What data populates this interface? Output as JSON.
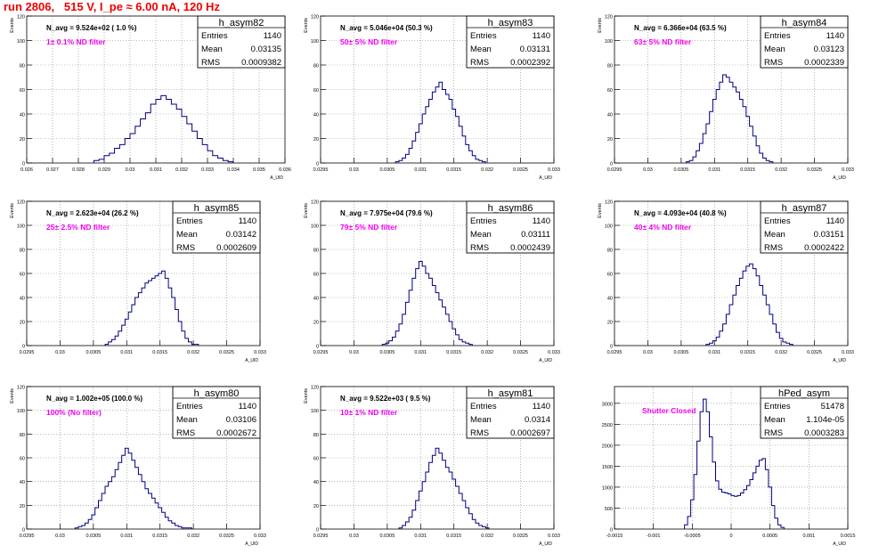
{
  "title": "run 2806,   515 V, I_pe ≈ 6.00 nA, 120 Hz",
  "colors": {
    "title": "#ee0000",
    "annotation": "#ee00ee",
    "histogram": "#000080",
    "grid": "#888888"
  },
  "chart_data": [
    {
      "type": "bar",
      "name": "h_asym82",
      "xlabel": "A_UID",
      "ylabel": "Events",
      "xlim": [
        0.026,
        0.036
      ],
      "ylim": [
        0,
        120
      ],
      "xticks": [
        "0.026",
        "0.027",
        "0.028",
        "0.029",
        "0.03",
        "0.031",
        "0.032",
        "0.033",
        "0.034",
        "0.035",
        "0.036"
      ],
      "yticks": [
        "0",
        "20",
        "40",
        "60",
        "80",
        "100",
        "120"
      ],
      "grid": true,
      "stats": [
        [
          "Entries",
          "1140"
        ],
        [
          "Mean",
          "0.03135"
        ],
        [
          "RMS",
          "0.0009382"
        ]
      ],
      "navg": "N_avg = 9.524e+02 ( 1.0 %)",
      "annotation": "1± 0.1% ND filter",
      "x": [
        0.0287,
        0.0289,
        0.0291,
        0.0293,
        0.0295,
        0.0297,
        0.0299,
        0.0301,
        0.0303,
        0.0305,
        0.0307,
        0.0309,
        0.0311,
        0.0313,
        0.0315,
        0.0317,
        0.0319,
        0.0321,
        0.0323,
        0.0325,
        0.0327,
        0.0329,
        0.0331,
        0.0333,
        0.0335,
        0.0337,
        0.0339
      ],
      "values": [
        2,
        3,
        6,
        8,
        12,
        15,
        20,
        24,
        30,
        36,
        41,
        48,
        52,
        55,
        52,
        48,
        44,
        38,
        32,
        26,
        20,
        15,
        10,
        6,
        4,
        2,
        1
      ]
    },
    {
      "type": "bar",
      "name": "h_asym83",
      "xlabel": "A_UID",
      "ylabel": "Events",
      "xlim": [
        0.0295,
        0.033
      ],
      "ylim": [
        0,
        120
      ],
      "xticks": [
        "0.0295",
        "0.03",
        "0.0305",
        "0.031",
        "0.0315",
        "0.032",
        "0.0325",
        "0.033"
      ],
      "yticks": [
        "0",
        "20",
        "40",
        "60",
        "80",
        "100",
        "120"
      ],
      "grid": true,
      "stats": [
        [
          "Entries",
          "1140"
        ],
        [
          "Mean",
          "0.03131"
        ],
        [
          "RMS",
          "0.0002392"
        ]
      ],
      "navg": "N_avg = 5.046e+04 (50.3 %)",
      "annotation": "50± 5% ND filter",
      "x": [
        0.03065,
        0.0307,
        0.03075,
        0.0308,
        0.03085,
        0.0309,
        0.03095,
        0.031,
        0.03105,
        0.0311,
        0.03115,
        0.0312,
        0.03125,
        0.0313,
        0.03135,
        0.0314,
        0.03145,
        0.0315,
        0.03155,
        0.0316,
        0.03165,
        0.0317,
        0.03175,
        0.0318,
        0.03185,
        0.0319,
        0.03195
      ],
      "values": [
        1,
        2,
        4,
        7,
        12,
        18,
        25,
        32,
        40,
        46,
        52,
        58,
        62,
        66,
        60,
        56,
        52,
        44,
        38,
        30,
        22,
        15,
        10,
        6,
        3,
        2,
        1
      ]
    },
    {
      "type": "bar",
      "name": "h_asym84",
      "xlabel": "A_UID",
      "ylabel": "Events",
      "xlim": [
        0.0295,
        0.033
      ],
      "ylim": [
        0,
        120
      ],
      "xticks": [
        "0.0295",
        "0.03",
        "0.0305",
        "0.031",
        "0.0315",
        "0.032",
        "0.0325",
        "0.033"
      ],
      "yticks": [
        "0",
        "20",
        "40",
        "60",
        "80",
        "100",
        "120"
      ],
      "grid": true,
      "stats": [
        [
          "Entries",
          "1140"
        ],
        [
          "Mean",
          "0.03123"
        ],
        [
          "RMS",
          "0.0002339"
        ]
      ],
      "navg": "N_avg = 6.366e+04 (63.5 %)",
      "annotation": "63± 5% ND filter",
      "x": [
        0.0306,
        0.03065,
        0.0307,
        0.03075,
        0.0308,
        0.03085,
        0.0309,
        0.03095,
        0.031,
        0.03105,
        0.0311,
        0.03115,
        0.0312,
        0.03125,
        0.0313,
        0.03135,
        0.0314,
        0.03145,
        0.0315,
        0.03155,
        0.0316,
        0.03165,
        0.0317,
        0.03175,
        0.0318,
        0.03185
      ],
      "values": [
        1,
        2,
        5,
        10,
        16,
        24,
        32,
        42,
        52,
        60,
        66,
        72,
        70,
        66,
        62,
        58,
        52,
        46,
        38,
        30,
        22,
        14,
        8,
        4,
        2,
        1
      ]
    },
    {
      "type": "bar",
      "name": "h_asym85",
      "xlabel": "A_UID",
      "ylabel": "Events",
      "xlim": [
        0.0295,
        0.033
      ],
      "ylim": [
        0,
        120
      ],
      "xticks": [
        "0.0295",
        "0.03",
        "0.0305",
        "0.031",
        "0.0315",
        "0.032",
        "0.0325",
        "0.033"
      ],
      "yticks": [
        "0",
        "20",
        "40",
        "60",
        "80",
        "100",
        "120"
      ],
      "grid": true,
      "stats": [
        [
          "Entries",
          "1140"
        ],
        [
          "Mean",
          "0.03142"
        ],
        [
          "RMS",
          "0.0002609"
        ]
      ],
      "navg": "N_avg = 2.623e+04 (26.2 %)",
      "annotation": "25± 2.5% ND filter",
      "x": [
        0.0307,
        0.03075,
        0.0308,
        0.03085,
        0.0309,
        0.03095,
        0.031,
        0.03105,
        0.0311,
        0.03115,
        0.0312,
        0.03125,
        0.0313,
        0.03135,
        0.0314,
        0.03145,
        0.0315,
        0.03155,
        0.0316,
        0.03165,
        0.0317,
        0.03175,
        0.0318,
        0.03185,
        0.0319,
        0.03195,
        0.032,
        0.03205
      ],
      "values": [
        1,
        3,
        5,
        8,
        12,
        17,
        22,
        28,
        34,
        40,
        44,
        48,
        52,
        54,
        56,
        58,
        60,
        62,
        56,
        48,
        40,
        30,
        20,
        12,
        6,
        3,
        1,
        1
      ]
    },
    {
      "type": "bar",
      "name": "h_asym86",
      "xlabel": "A_UID",
      "ylabel": "Events",
      "xlim": [
        0.0295,
        0.033
      ],
      "ylim": [
        0,
        120
      ],
      "xticks": [
        "0.0295",
        "0.03",
        "0.0305",
        "0.031",
        "0.0315",
        "0.032",
        "0.0325",
        "0.033"
      ],
      "yticks": [
        "0",
        "20",
        "40",
        "60",
        "80",
        "100",
        "120"
      ],
      "grid": true,
      "stats": [
        [
          "Entries",
          "1140"
        ],
        [
          "Mean",
          "0.03111"
        ],
        [
          "RMS",
          "0.0002439"
        ]
      ],
      "navg": "N_avg = 7.975e+04 (79.6 %)",
      "annotation": "79± 5% ND filter",
      "x": [
        0.03045,
        0.0305,
        0.03055,
        0.0306,
        0.03065,
        0.0307,
        0.03075,
        0.0308,
        0.03085,
        0.0309,
        0.03095,
        0.031,
        0.03105,
        0.0311,
        0.03115,
        0.0312,
        0.03125,
        0.0313,
        0.03135,
        0.0314,
        0.03145,
        0.0315,
        0.03155,
        0.0316,
        0.03165,
        0.0317,
        0.03175
      ],
      "values": [
        1,
        2,
        4,
        7,
        12,
        18,
        26,
        36,
        46,
        56,
        64,
        70,
        66,
        60,
        56,
        50,
        44,
        38,
        32,
        26,
        20,
        14,
        9,
        5,
        3,
        2,
        1
      ]
    },
    {
      "type": "bar",
      "name": "h_asym87",
      "xlabel": "A_UID",
      "ylabel": "Events",
      "xlim": [
        0.0295,
        0.033
      ],
      "ylim": [
        0,
        120
      ],
      "xticks": [
        "0.0295",
        "0.03",
        "0.0305",
        "0.031",
        "0.0315",
        "0.032",
        "0.0325",
        "0.033"
      ],
      "yticks": [
        "0",
        "20",
        "40",
        "60",
        "80",
        "100",
        "120"
      ],
      "grid": true,
      "stats": [
        [
          "Entries",
          "1140"
        ],
        [
          "Mean",
          "0.03151"
        ],
        [
          "RMS",
          "0.0002422"
        ]
      ],
      "navg": "N_avg = 4.093e+04 (40.8 %)",
      "annotation": "40± 4% ND filter",
      "x": [
        0.0309,
        0.03095,
        0.031,
        0.03105,
        0.0311,
        0.03115,
        0.0312,
        0.03125,
        0.0313,
        0.03135,
        0.0314,
        0.03145,
        0.0315,
        0.03155,
        0.0316,
        0.03165,
        0.0317,
        0.03175,
        0.0318,
        0.03185,
        0.0319,
        0.03195,
        0.032,
        0.03205,
        0.0321,
        0.03215
      ],
      "values": [
        1,
        2,
        4,
        7,
        12,
        18,
        26,
        34,
        42,
        50,
        56,
        62,
        66,
        68,
        64,
        58,
        50,
        42,
        34,
        26,
        18,
        11,
        6,
        3,
        2,
        1
      ]
    },
    {
      "type": "bar",
      "name": "h_asym80",
      "xlabel": "A_UID",
      "ylabel": "Events",
      "xlim": [
        0.0295,
        0.033
      ],
      "ylim": [
        0,
        120
      ],
      "xticks": [
        "0.0295",
        "0.03",
        "0.0305",
        "0.031",
        "0.0315",
        "0.032",
        "0.0325",
        "0.033"
      ],
      "yticks": [
        "0",
        "20",
        "40",
        "60",
        "80",
        "100",
        "120"
      ],
      "grid": true,
      "stats": [
        [
          "Entries",
          "1140"
        ],
        [
          "Mean",
          "0.03106"
        ],
        [
          "RMS",
          "0.0002672"
        ]
      ],
      "navg": "N_avg = 1.002e+05 (100.0 %)",
      "annotation": "100% (No filter)",
      "x": [
        0.03025,
        0.0303,
        0.03035,
        0.0304,
        0.03045,
        0.0305,
        0.03055,
        0.0306,
        0.03065,
        0.0307,
        0.03075,
        0.0308,
        0.03085,
        0.0309,
        0.03095,
        0.031,
        0.03105,
        0.0311,
        0.03115,
        0.0312,
        0.03125,
        0.0313,
        0.03135,
        0.0314,
        0.03145,
        0.0315,
        0.03155,
        0.0316,
        0.03165,
        0.0317,
        0.03175,
        0.0318,
        0.03185,
        0.0319,
        0.03195
      ],
      "values": [
        1,
        2,
        3,
        5,
        8,
        12,
        18,
        24,
        30,
        36,
        40,
        44,
        50,
        56,
        62,
        68,
        64,
        58,
        52,
        46,
        40,
        34,
        30,
        26,
        22,
        18,
        14,
        10,
        7,
        5,
        3,
        2,
        1,
        1,
        1
      ]
    },
    {
      "type": "bar",
      "name": "h_asym81",
      "xlabel": "A_UID",
      "ylabel": "Events",
      "xlim": [
        0.0295,
        0.033
      ],
      "ylim": [
        0,
        120
      ],
      "xticks": [
        "0.0295",
        "0.03",
        "0.0305",
        "0.031",
        "0.0315",
        "0.032",
        "0.0325",
        "0.033"
      ],
      "yticks": [
        "0",
        "20",
        "40",
        "60",
        "80",
        "100",
        "120"
      ],
      "grid": true,
      "stats": [
        [
          "Entries",
          "1140"
        ],
        [
          "Mean",
          "0.0314"
        ],
        [
          "RMS",
          "0.0002697"
        ]
      ],
      "navg": "N_avg = 9.522e+03 ( 9.5 %)",
      "annotation": "10± 1% ND filter",
      "x": [
        0.0307,
        0.03075,
        0.0308,
        0.03085,
        0.0309,
        0.03095,
        0.031,
        0.03105,
        0.0311,
        0.03115,
        0.0312,
        0.03125,
        0.0313,
        0.03135,
        0.0314,
        0.03145,
        0.0315,
        0.03155,
        0.0316,
        0.03165,
        0.0317,
        0.03175,
        0.0318,
        0.03185,
        0.0319,
        0.03195,
        0.032
      ],
      "values": [
        1,
        3,
        6,
        10,
        16,
        24,
        32,
        40,
        48,
        56,
        62,
        68,
        64,
        58,
        52,
        48,
        42,
        36,
        30,
        24,
        18,
        13,
        8,
        5,
        3,
        2,
        1
      ]
    },
    {
      "type": "bar",
      "name": "hPed_asym",
      "xlabel": "A_UID",
      "ylabel": "",
      "xlim": [
        -0.0015,
        0.0015
      ],
      "ylim": [
        0,
        3400
      ],
      "xticks": [
        "-0.0015",
        "-0.001",
        "-0.0005",
        "0",
        "0.0005",
        "0.001",
        "0.0015"
      ],
      "yticks": [
        "0",
        "500",
        "1000",
        "1500",
        "2000",
        "2500",
        "3000"
      ],
      "grid": true,
      "stats": [
        [
          "Entries",
          "51478"
        ],
        [
          "Mean",
          "1.104e-05"
        ],
        [
          "RMS",
          "0.0003283"
        ]
      ],
      "navg": "",
      "annotation": "Shutter Closed",
      "x": [
        -0.00058,
        -0.00054,
        -0.0005,
        -0.00046,
        -0.00042,
        -0.00038,
        -0.00034,
        -0.0003,
        -0.00026,
        -0.00022,
        -0.00018,
        -0.00014,
        -0.0001,
        -6e-05,
        -2e-05,
        2e-05,
        6e-05,
        0.0001,
        0.00014,
        0.00018,
        0.00022,
        0.00026,
        0.0003,
        0.00034,
        0.00038,
        0.00042,
        0.00046,
        0.0005,
        0.00054,
        0.00058,
        0.00062,
        0.00066
      ],
      "values": [
        100,
        300,
        700,
        1300,
        2100,
        2800,
        3100,
        2800,
        2200,
        1600,
        1150,
        950,
        880,
        860,
        840,
        800,
        780,
        800,
        860,
        940,
        1040,
        1180,
        1340,
        1500,
        1640,
        1680,
        1420,
        1000,
        560,
        260,
        100,
        40
      ]
    }
  ]
}
